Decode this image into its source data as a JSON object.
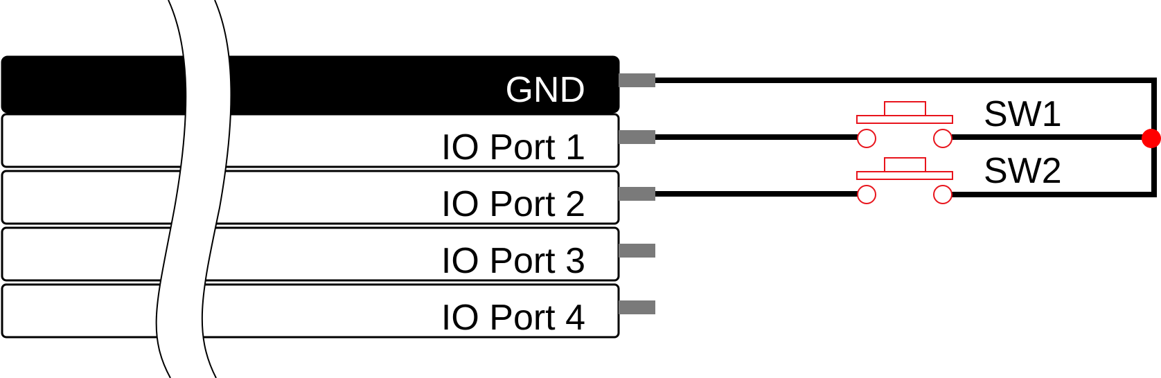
{
  "pins": [
    {
      "label": "GND",
      "type": "ground"
    },
    {
      "label": "IO Port 1",
      "type": "io"
    },
    {
      "label": "IO Port 2",
      "type": "io"
    },
    {
      "label": "IO Port 3",
      "type": "io"
    },
    {
      "label": "IO Port 4",
      "type": "io"
    }
  ],
  "switches": [
    {
      "label": "SW1",
      "pin": 1
    },
    {
      "label": "SW2",
      "pin": 2
    }
  ],
  "colors": {
    "wire": "#000000",
    "pin_stub": "#7a7a7a",
    "switch": "#e8141c",
    "junction": "#ff0000",
    "ground_fill": "#000000",
    "ground_text": "#ffffff",
    "io_fill": "#ffffff",
    "io_text": "#000000"
  }
}
